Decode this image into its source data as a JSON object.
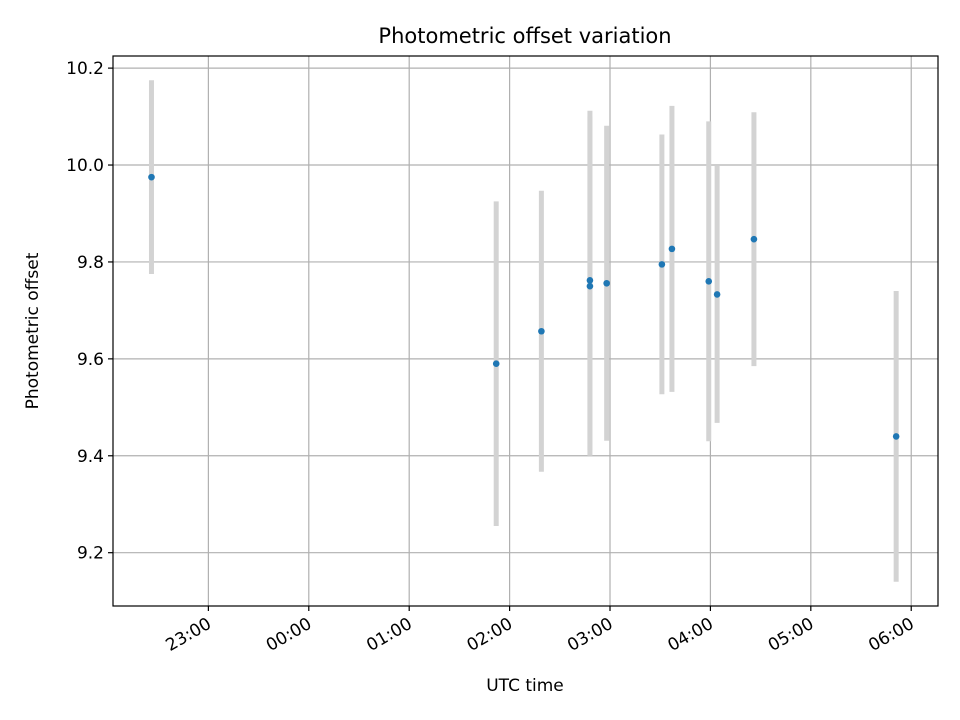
{
  "chart_data": {
    "type": "scatter",
    "title": "Photometric offset variation",
    "xlabel": "UTC time",
    "ylabel": "Photometric offset",
    "ylim": [
      9.09,
      10.225
    ],
    "xlim": [
      "22:03",
      "06:16"
    ],
    "x_ticks": [
      "23:00",
      "00:00",
      "01:00",
      "02:00",
      "03:00",
      "04:00",
      "05:00",
      "06:00"
    ],
    "y_ticks": [
      9.2,
      9.4,
      9.6,
      9.8,
      10.0,
      10.2
    ],
    "y_tick_labels": [
      "9.2",
      "9.4",
      "9.6",
      "9.8",
      "10.0",
      "10.2"
    ],
    "grid": true,
    "point_color": "#1f77b4",
    "errorbar_color": "#d3d3d3",
    "points": [
      {
        "x": "22:26",
        "y": 9.975,
        "yerr": 0.2
      },
      {
        "x": "01:52",
        "y": 9.59,
        "yerr": 0.335
      },
      {
        "x": "02:19",
        "y": 9.657,
        "yerr": 0.29
      },
      {
        "x": "02:48",
        "y": 9.762,
        "yerr": 0.35
      },
      {
        "x": "02:48",
        "y": 9.75,
        "yerr": 0.35
      },
      {
        "x": "02:58",
        "y": 9.756,
        "yerr": 0.325
      },
      {
        "x": "03:31",
        "y": 9.795,
        "yerr": 0.268
      },
      {
        "x": "03:37",
        "y": 9.827,
        "yerr": 0.295
      },
      {
        "x": "03:59",
        "y": 9.76,
        "yerr": 0.33
      },
      {
        "x": "04:04",
        "y": 9.733,
        "yerr": 0.265
      },
      {
        "x": "04:26",
        "y": 9.847,
        "yerr": 0.262
      },
      {
        "x": "05:51",
        "y": 9.44,
        "yerr": 0.3
      }
    ]
  }
}
